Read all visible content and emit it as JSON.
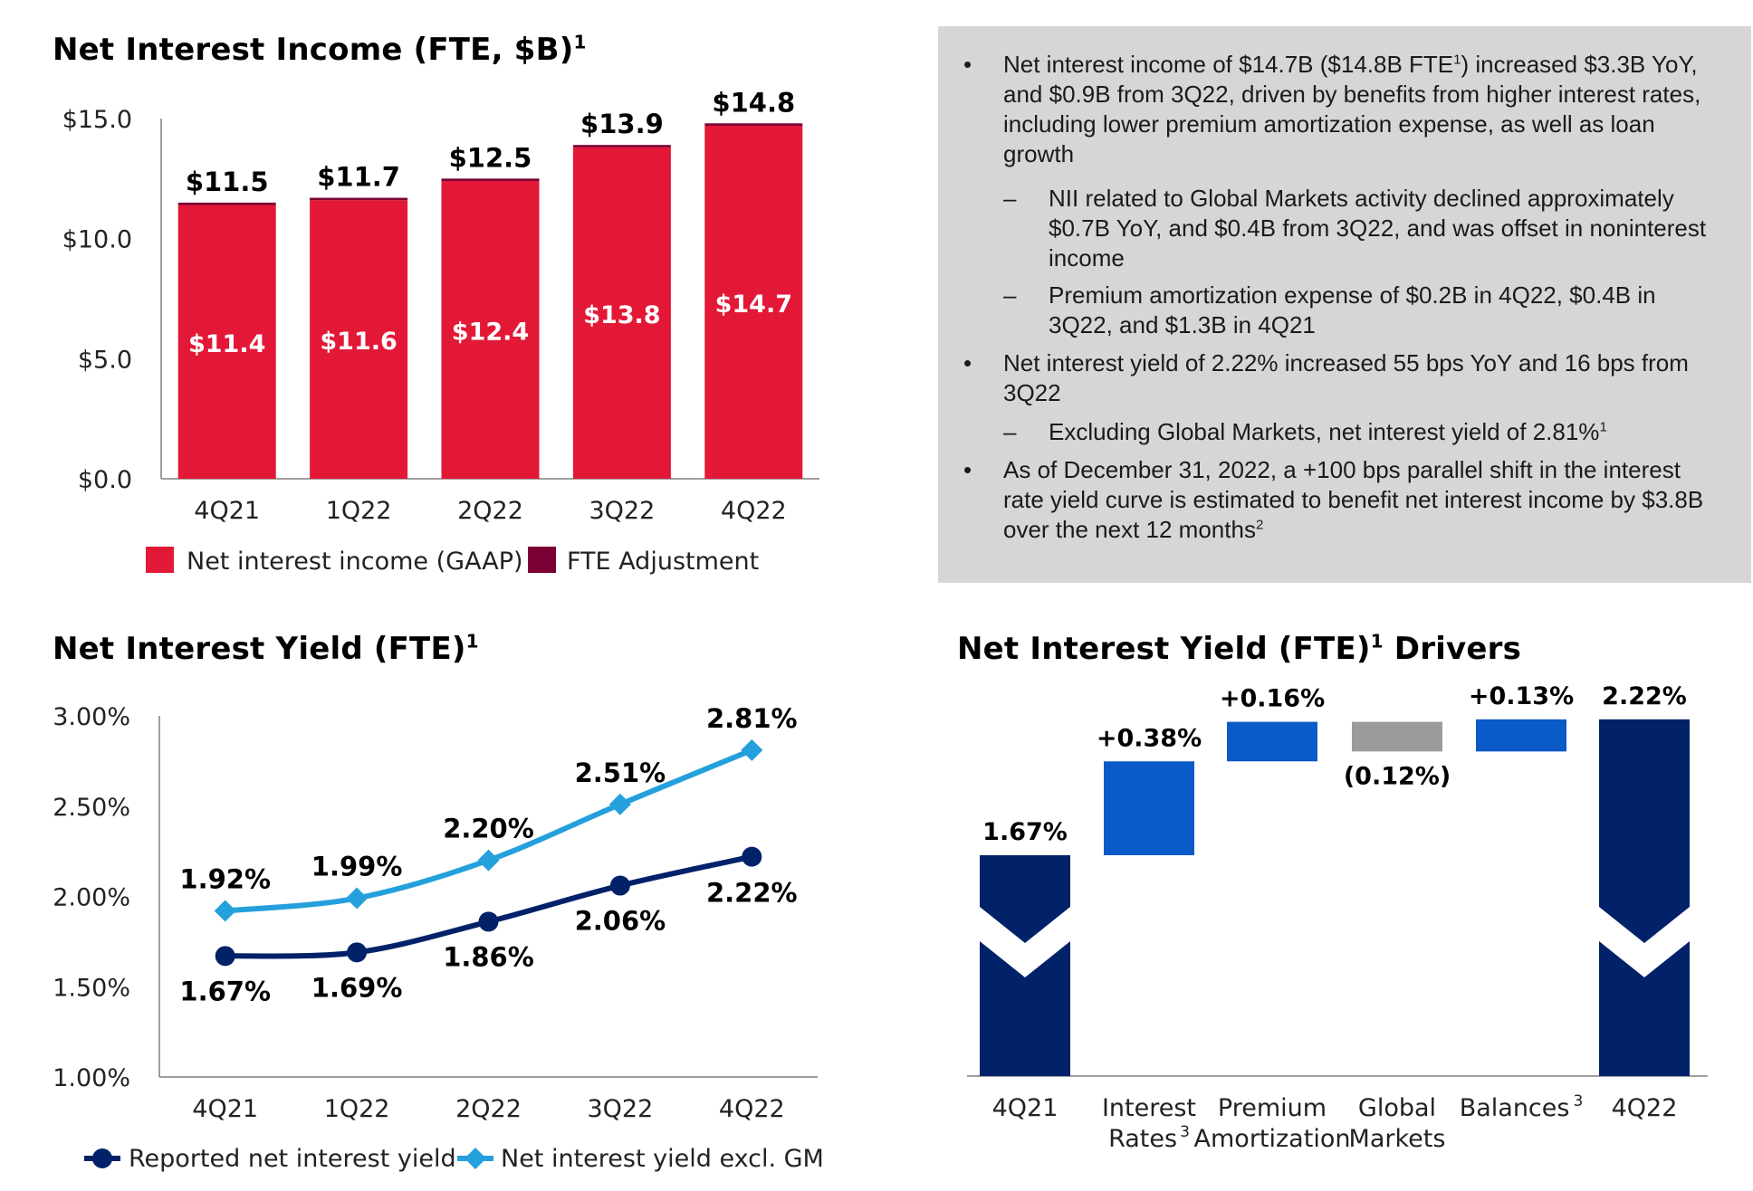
{
  "titles": {
    "nii": "Net Interest Income (FTE, $B)",
    "nii_sup": "1",
    "yield": "Net Interest Yield (FTE)",
    "yield_sup": "1",
    "drivers": "Net Interest Yield (FTE)",
    "drivers_sup": "1",
    "drivers_suffix": " Drivers"
  },
  "commentary": {
    "bullets": [
      {
        "level": 1,
        "marker": "•",
        "parts": [
          {
            "t": "Net interest income of $14.7B ($14.8B FTE"
          },
          {
            "sup": "1"
          },
          {
            "t": ") increased $3.3B YoY, and $0.9B from 3Q22, driven by benefits from higher interest rates, including lower premium amortization expense, as well as loan growth"
          }
        ]
      },
      {
        "level": 2,
        "marker": "–",
        "parts": [
          {
            "t": "NII related to Global Markets activity declined approximately $0.7B YoY, and $0.4B from 3Q22, and was offset in noninterest income"
          }
        ]
      },
      {
        "level": 2,
        "marker": "–",
        "parts": [
          {
            "t": "Premium amortization expense of $0.2B in 4Q22, $0.4B in 3Q22, and $1.3B in 4Q21"
          }
        ]
      },
      {
        "level": 1,
        "marker": "•",
        "parts": [
          {
            "t": "Net interest yield of 2.22% increased 55 bps YoY and 16 bps from 3Q22"
          }
        ]
      },
      {
        "level": 2,
        "marker": "–",
        "parts": [
          {
            "t": "Excluding Global Markets, net interest yield of 2.81%"
          },
          {
            "sup": "1"
          }
        ]
      },
      {
        "level": 1,
        "marker": "•",
        "parts": [
          {
            "t": "As of December 31, 2022, a +100 bps parallel shift in the interest rate yield curve is estimated to benefit net interest income by $3.8B over the next 12 months"
          },
          {
            "sup": "2"
          }
        ]
      }
    ]
  },
  "colors": {
    "gaap": "#e31837",
    "fte": "#7a0033",
    "reported": "#012169",
    "exgm": "#24a0dc",
    "driver_pos": "#0a5ac8",
    "driver_neg": "#9b9b9b",
    "driver_total": "#012169",
    "axis": "#7f7f7f"
  },
  "chart_data": [
    {
      "id": "nii",
      "type": "bar",
      "stacked": true,
      "title": "Net Interest Income (FTE, $B)",
      "categories": [
        "4Q21",
        "1Q22",
        "2Q22",
        "3Q22",
        "4Q22"
      ],
      "series": [
        {
          "name": "Net interest income (GAAP)",
          "values": [
            11.4,
            11.6,
            12.4,
            13.8,
            14.7
          ],
          "labels": [
            "$11.4",
            "$11.6",
            "$12.4",
            "$13.8",
            "$14.7"
          ]
        },
        {
          "name": "FTE Adjustment",
          "values": [
            0.1,
            0.1,
            0.1,
            0.1,
            0.1
          ]
        }
      ],
      "totals": [
        11.5,
        11.7,
        12.5,
        13.9,
        14.8
      ],
      "total_labels": [
        "$11.5",
        "$11.7",
        "$12.5",
        "$13.9",
        "$14.8"
      ],
      "yticks": [
        0,
        5,
        10,
        15
      ],
      "ytick_labels": [
        "$0.0",
        "$5.0",
        "$10.0",
        "$15.0"
      ],
      "ylim": [
        0,
        15
      ],
      "legend": "bottom"
    },
    {
      "id": "yield",
      "type": "line",
      "title": "Net Interest Yield (FTE)",
      "categories": [
        "4Q21",
        "1Q22",
        "2Q22",
        "3Q22",
        "4Q22"
      ],
      "series": [
        {
          "name": "Reported net interest yield",
          "marker": "circle",
          "values": [
            1.67,
            1.69,
            1.86,
            2.06,
            2.22
          ],
          "labels": [
            "1.67%",
            "1.69%",
            "1.86%",
            "2.06%",
            "2.22%"
          ]
        },
        {
          "name": "Net interest yield excl. GM",
          "marker": "diamond",
          "values": [
            1.92,
            1.99,
            2.2,
            2.51,
            2.81
          ],
          "labels": [
            "1.92%",
            "1.99%",
            "2.20%",
            "2.51%",
            "2.81%"
          ]
        }
      ],
      "yticks": [
        1.0,
        1.5,
        2.0,
        2.5,
        3.0
      ],
      "ytick_labels": [
        "1.00%",
        "1.50%",
        "2.00%",
        "2.50%",
        "3.00%"
      ],
      "ylim": [
        1.0,
        3.0
      ],
      "legend": "bottom"
    },
    {
      "id": "drivers",
      "type": "waterfall",
      "title": "Net Interest Yield (FTE) Drivers",
      "steps": [
        {
          "label": "4Q21",
          "sup": "",
          "value": 1.67,
          "kind": "total",
          "value_label": "1.67%"
        },
        {
          "label": "Interest Rates",
          "sup": "3",
          "value": 0.38,
          "kind": "delta",
          "value_label": "+0.38%"
        },
        {
          "label": "Premium Amortization",
          "sup": "",
          "value": 0.16,
          "kind": "delta",
          "value_label": "+0.16%"
        },
        {
          "label": "Global Markets",
          "sup": "",
          "value": -0.12,
          "kind": "delta",
          "value_label": "(0.12%)"
        },
        {
          "label": "Balances",
          "sup": "3",
          "value": 0.13,
          "kind": "delta",
          "value_label": "+0.13%"
        },
        {
          "label": "4Q22",
          "sup": "",
          "value": 2.22,
          "kind": "total",
          "value_label": "2.22%"
        }
      ],
      "axis_break": true
    }
  ]
}
